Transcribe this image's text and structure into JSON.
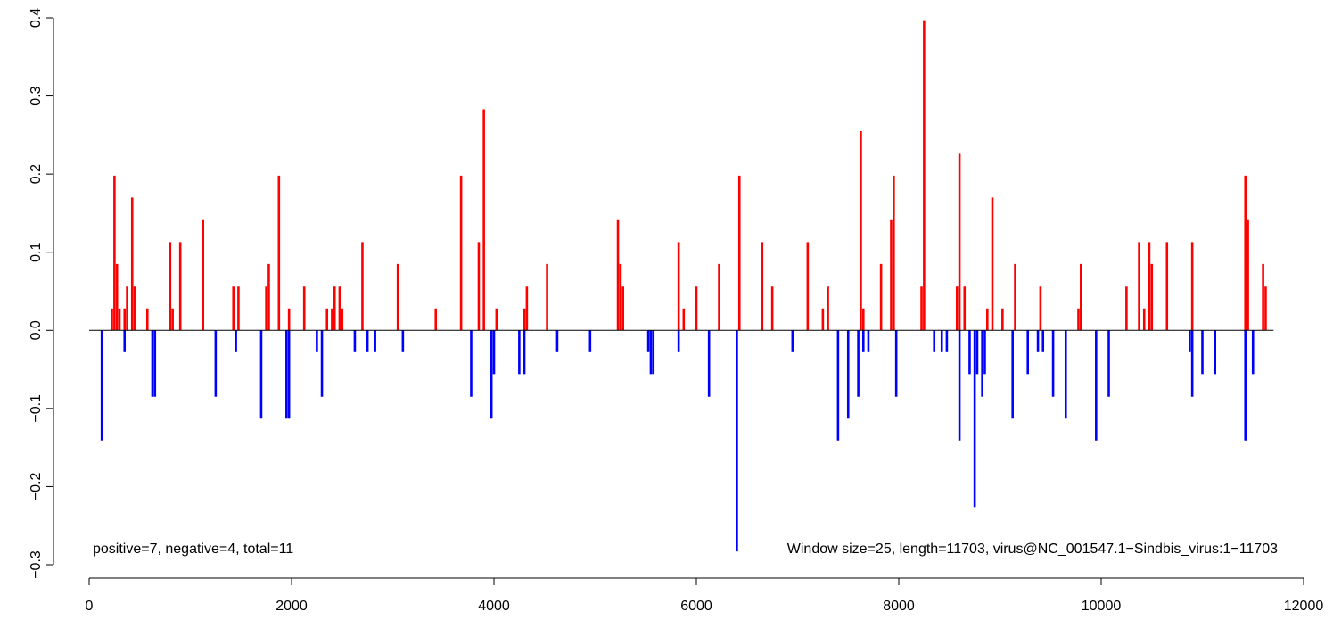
{
  "chart_data": {
    "type": "bar",
    "title": "",
    "xlabel": "",
    "ylabel": "",
    "xlim": [
      0,
      12000
    ],
    "ylim": [
      -0.3,
      0.4
    ],
    "x_ticks": [
      0,
      2000,
      4000,
      6000,
      8000,
      10000,
      12000
    ],
    "y_ticks": [
      -0.3,
      -0.2,
      -0.1,
      0.0,
      0.1,
      0.2,
      0.3,
      0.4
    ],
    "x_tick_labels": [
      "0",
      "2000",
      "4000",
      "6000",
      "8000",
      "10000",
      "12000"
    ],
    "y_tick_labels": [
      "−0.3",
      "−0.2",
      "−0.1",
      "0.0",
      "0.1",
      "0.2",
      "0.3",
      "0.4"
    ],
    "baseline": {
      "from": 0,
      "to": 11703,
      "y": 0
    },
    "colors": {
      "positive": "#ff0000",
      "negative": "#0000ff",
      "axis": "#000000"
    },
    "grid": false,
    "annotations": {
      "left": "positive=7, negative=4, total=11",
      "right": "Window size=25, length=11703, virus@NC_001547.1−Sindbis_virus:1−11703"
    },
    "series": [
      {
        "sign": "positive",
        "points": [
          [
            225,
            0.028
          ],
          [
            250,
            0.198
          ],
          [
            275,
            0.085
          ],
          [
            300,
            0.028
          ],
          [
            350,
            0.028
          ],
          [
            375,
            0.056
          ],
          [
            425,
            0.17
          ],
          [
            450,
            0.056
          ],
          [
            575,
            0.028
          ],
          [
            800,
            0.113
          ],
          [
            825,
            0.028
          ],
          [
            900,
            0.113
          ],
          [
            1125,
            0.141
          ],
          [
            1425,
            0.056
          ],
          [
            1475,
            0.056
          ],
          [
            1750,
            0.056
          ],
          [
            1775,
            0.085
          ],
          [
            1875,
            0.198
          ],
          [
            1975,
            0.028
          ],
          [
            2125,
            0.056
          ],
          [
            2350,
            0.028
          ],
          [
            2400,
            0.028
          ],
          [
            2425,
            0.056
          ],
          [
            2475,
            0.056
          ],
          [
            2500,
            0.028
          ],
          [
            2700,
            0.113
          ],
          [
            3050,
            0.085
          ],
          [
            3425,
            0.028
          ],
          [
            3675,
            0.198
          ],
          [
            3850,
            0.113
          ],
          [
            3900,
            0.283
          ],
          [
            4025,
            0.028
          ],
          [
            4300,
            0.028
          ],
          [
            4325,
            0.056
          ],
          [
            4525,
            0.085
          ],
          [
            5225,
            0.141
          ],
          [
            5250,
            0.085
          ],
          [
            5275,
            0.056
          ],
          [
            5825,
            0.113
          ],
          [
            5875,
            0.028
          ],
          [
            6000,
            0.056
          ],
          [
            6225,
            0.085
          ],
          [
            6425,
            0.198
          ],
          [
            6650,
            0.113
          ],
          [
            6750,
            0.056
          ],
          [
            7100,
            0.113
          ],
          [
            7250,
            0.028
          ],
          [
            7300,
            0.056
          ],
          [
            7625,
            0.255
          ],
          [
            7650,
            0.028
          ],
          [
            7825,
            0.085
          ],
          [
            7925,
            0.141
          ],
          [
            7950,
            0.198
          ],
          [
            8225,
            0.056
          ],
          [
            8250,
            0.397
          ],
          [
            8575,
            0.056
          ],
          [
            8600,
            0.226
          ],
          [
            8650,
            0.056
          ],
          [
            8875,
            0.028
          ],
          [
            8925,
            0.17
          ],
          [
            9025,
            0.028
          ],
          [
            9150,
            0.085
          ],
          [
            9400,
            0.056
          ],
          [
            9775,
            0.028
          ],
          [
            9800,
            0.085
          ],
          [
            10250,
            0.056
          ],
          [
            10375,
            0.113
          ],
          [
            10425,
            0.028
          ],
          [
            10475,
            0.113
          ],
          [
            10500,
            0.085
          ],
          [
            10650,
            0.113
          ],
          [
            10900,
            0.113
          ],
          [
            11425,
            0.198
          ],
          [
            11450,
            0.141
          ],
          [
            11600,
            0.085
          ],
          [
            11625,
            0.056
          ]
        ]
      },
      {
        "sign": "negative",
        "points": [
          [
            125,
            -0.141
          ],
          [
            350,
            -0.028
          ],
          [
            625,
            -0.085
          ],
          [
            650,
            -0.085
          ],
          [
            1250,
            -0.085
          ],
          [
            1450,
            -0.028
          ],
          [
            1700,
            -0.113
          ],
          [
            1950,
            -0.113
          ],
          [
            1975,
            -0.113
          ],
          [
            2250,
            -0.028
          ],
          [
            2300,
            -0.085
          ],
          [
            2625,
            -0.028
          ],
          [
            2750,
            -0.028
          ],
          [
            2825,
            -0.028
          ],
          [
            3100,
            -0.028
          ],
          [
            3775,
            -0.085
          ],
          [
            3975,
            -0.113
          ],
          [
            4000,
            -0.056
          ],
          [
            4250,
            -0.056
          ],
          [
            4300,
            -0.056
          ],
          [
            4625,
            -0.028
          ],
          [
            4950,
            -0.028
          ],
          [
            5525,
            -0.028
          ],
          [
            5550,
            -0.056
          ],
          [
            5575,
            -0.056
          ],
          [
            5825,
            -0.028
          ],
          [
            6125,
            -0.085
          ],
          [
            6400,
            -0.283
          ],
          [
            6950,
            -0.028
          ],
          [
            7400,
            -0.141
          ],
          [
            7500,
            -0.113
          ],
          [
            7600,
            -0.085
          ],
          [
            7650,
            -0.028
          ],
          [
            7700,
            -0.028
          ],
          [
            7975,
            -0.085
          ],
          [
            8350,
            -0.028
          ],
          [
            8425,
            -0.028
          ],
          [
            8475,
            -0.028
          ],
          [
            8700,
            -0.056
          ],
          [
            8750,
            -0.226
          ],
          [
            8775,
            -0.056
          ],
          [
            8825,
            -0.085
          ],
          [
            8850,
            -0.056
          ],
          [
            8600,
            -0.141
          ],
          [
            9125,
            -0.113
          ],
          [
            9275,
            -0.056
          ],
          [
            9375,
            -0.028
          ],
          [
            9425,
            -0.028
          ],
          [
            9525,
            -0.085
          ],
          [
            9650,
            -0.113
          ],
          [
            9950,
            -0.141
          ],
          [
            10075,
            -0.085
          ],
          [
            10875,
            -0.028
          ],
          [
            10900,
            -0.085
          ],
          [
            11000,
            -0.056
          ],
          [
            11125,
            -0.056
          ],
          [
            11425,
            -0.141
          ],
          [
            11500,
            -0.056
          ]
        ]
      }
    ]
  }
}
